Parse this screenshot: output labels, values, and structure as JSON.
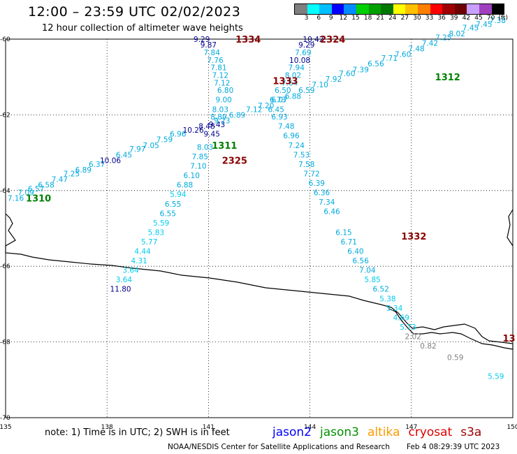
{
  "header": {
    "title": "12:00 – 23:59 UTC 02/02/2023",
    "subtitle": "12 hour collection of altimeter wave heights"
  },
  "colorbar": {
    "unit": "(ft)",
    "labels": [
      "3",
      "6",
      "9",
      "12",
      "15",
      "18",
      "21",
      "24",
      "27",
      "30",
      "33",
      "36",
      "39",
      "42",
      "45",
      "70"
    ],
    "colors": [
      "#7f7f7f",
      "#00ffff",
      "#00bfff",
      "#0000ff",
      "#008cff",
      "#00d000",
      "#00a000",
      "#007800",
      "#ffff00",
      "#ffc000",
      "#ff8000",
      "#ff0000",
      "#a00000",
      "#6e0000",
      "#c8a0ff",
      "#a040c0",
      "#000000"
    ]
  },
  "footer": {
    "note": "note: 1) Time is in UTC; 2) SWH is in feet",
    "credit": "NOAA/NESDIS Center for Satellite Applications and Research",
    "timestamp": "Feb  4 08:29:39 UTC 2023"
  },
  "legend": [
    {
      "name": "jason2",
      "color": "#0000ff"
    },
    {
      "name": "jason3",
      "color": "#009000"
    },
    {
      "name": "altika",
      "color": "#ff9900"
    },
    {
      "name": "cryosat",
      "color": "#dd0000"
    },
    {
      "name": "s3a",
      "color": "#990000"
    }
  ],
  "chart_data": {
    "type": "scatter",
    "title": "12:00 – 23:59 UTC 02/02/2023",
    "xlabel": "",
    "ylabel": "",
    "xlim": [
      135,
      150
    ],
    "ylim": [
      -70,
      -60
    ],
    "x_ticks": [
      "135",
      "138",
      "141",
      "144",
      "147",
      "150"
    ],
    "y_ticks": [
      "-60",
      "-62",
      "-64",
      "-66",
      "-68",
      "-70"
    ],
    "grid": true,
    "pass_labels": [
      {
        "text": "1334",
        "lon": 141.8,
        "lat": -60.0,
        "color": "#880000"
      },
      {
        "text": "2324",
        "lon": 144.3,
        "lat": -60.0,
        "color": "#880000"
      },
      {
        "text": "1333",
        "lon": 142.9,
        "lat": -61.1,
        "color": "#880000"
      },
      {
        "text": "1312",
        "lon": 147.7,
        "lat": -61.0,
        "color": "#008000"
      },
      {
        "text": "1311",
        "lon": 141.1,
        "lat": -62.8,
        "color": "#008000"
      },
      {
        "text": "2325",
        "lon": 141.4,
        "lat": -63.2,
        "color": "#880000"
      },
      {
        "text": "1310",
        "lon": 135.6,
        "lat": -64.2,
        "color": "#008000"
      },
      {
        "text": "1332",
        "lon": 146.7,
        "lat": -65.2,
        "color": "#880000"
      },
      {
        "text": "13",
        "lon": 149.7,
        "lat": -67.9,
        "color": "#880000"
      }
    ],
    "points": [
      {
        "lon": 140.8,
        "lat": -60.0,
        "v": "9.29",
        "c": "#00008b"
      },
      {
        "lon": 141.0,
        "lat": -60.15,
        "v": "9.87",
        "c": "#00008b"
      },
      {
        "lon": 141.1,
        "lat": -60.35,
        "v": "7.84",
        "c": "#00aadd"
      },
      {
        "lon": 141.2,
        "lat": -60.55,
        "v": "7.76",
        "c": "#00aadd"
      },
      {
        "lon": 141.3,
        "lat": -60.75,
        "v": "7.81",
        "c": "#00aadd"
      },
      {
        "lon": 141.35,
        "lat": -60.95,
        "v": "7.12",
        "c": "#00aadd"
      },
      {
        "lon": 141.4,
        "lat": -61.15,
        "v": "7.12",
        "c": "#00aadd"
      },
      {
        "lon": 141.5,
        "lat": -61.35,
        "v": "6.80",
        "c": "#00aadd"
      },
      {
        "lon": 141.45,
        "lat": -61.6,
        "v": "9.00",
        "c": "#00aadd"
      },
      {
        "lon": 141.35,
        "lat": -61.85,
        "v": "8.03",
        "c": "#00aadd"
      },
      {
        "lon": 141.3,
        "lat": -62.05,
        "v": "8.89",
        "c": "#00aadd"
      },
      {
        "lon": 141.25,
        "lat": -62.25,
        "v": "9.43",
        "c": "#00008b"
      },
      {
        "lon": 141.1,
        "lat": -62.5,
        "v": "9.45",
        "c": "#00008b"
      },
      {
        "lon": 140.9,
        "lat": -62.85,
        "v": "8.03",
        "c": "#00aadd"
      },
      {
        "lon": 140.75,
        "lat": -63.1,
        "v": "7.85",
        "c": "#00aadd"
      },
      {
        "lon": 140.7,
        "lat": -63.35,
        "v": "7.10",
        "c": "#00aadd"
      },
      {
        "lon": 140.5,
        "lat": -63.6,
        "v": "6.10",
        "c": "#00aadd"
      },
      {
        "lon": 140.3,
        "lat": -63.85,
        "v": "6.88",
        "c": "#00aadd"
      },
      {
        "lon": 140.1,
        "lat": -64.1,
        "v": "5.94",
        "c": "#00ccee"
      },
      {
        "lon": 139.95,
        "lat": -64.35,
        "v": "6.55",
        "c": "#00aadd"
      },
      {
        "lon": 139.8,
        "lat": -64.6,
        "v": "6.55",
        "c": "#00aadd"
      },
      {
        "lon": 139.6,
        "lat": -64.85,
        "v": "5.59",
        "c": "#00ccee"
      },
      {
        "lon": 139.45,
        "lat": -65.1,
        "v": "5.83",
        "c": "#00ccee"
      },
      {
        "lon": 139.25,
        "lat": -65.35,
        "v": "5.77",
        "c": "#00ccee"
      },
      {
        "lon": 139.05,
        "lat": -65.6,
        "v": "4.44",
        "c": "#00ccee"
      },
      {
        "lon": 138.95,
        "lat": -65.85,
        "v": "4.31",
        "c": "#00ccee"
      },
      {
        "lon": 138.7,
        "lat": -66.1,
        "v": "3.64",
        "c": "#00ccee"
      },
      {
        "lon": 138.5,
        "lat": -66.35,
        "v": "3.64",
        "c": "#00ccee"
      },
      {
        "lon": 138.4,
        "lat": -66.6,
        "v": "11.80",
        "c": "#00008b"
      },
      {
        "lon": 144.1,
        "lat": -60.0,
        "v": "10.42",
        "c": "#00008b"
      },
      {
        "lon": 143.9,
        "lat": -60.15,
        "v": "9.29",
        "c": "#00008b"
      },
      {
        "lon": 143.8,
        "lat": -60.35,
        "v": "7.69",
        "c": "#00aadd"
      },
      {
        "lon": 143.7,
        "lat": -60.55,
        "v": "10.08",
        "c": "#00008b"
      },
      {
        "lon": 143.6,
        "lat": -60.75,
        "v": "7.94",
        "c": "#00aadd"
      },
      {
        "lon": 143.5,
        "lat": -60.95,
        "v": "8.02",
        "c": "#00aadd"
      },
      {
        "lon": 143.4,
        "lat": -61.15,
        "v": "7.64",
        "c": "#00aadd"
      },
      {
        "lon": 143.2,
        "lat": -61.35,
        "v": "6.50",
        "c": "#00aadd"
      },
      {
        "lon": 143.05,
        "lat": -61.6,
        "v": "6.73",
        "c": "#00aadd"
      },
      {
        "lon": 143.0,
        "lat": -61.85,
        "v": "6.45",
        "c": "#00aadd"
      },
      {
        "lon": 143.1,
        "lat": -62.05,
        "v": "6.93",
        "c": "#00aadd"
      },
      {
        "lon": 143.3,
        "lat": -62.3,
        "v": "7.48",
        "c": "#00aadd"
      },
      {
        "lon": 143.45,
        "lat": -62.55,
        "v": "6.96",
        "c": "#00aadd"
      },
      {
        "lon": 143.6,
        "lat": -62.8,
        "v": "7.24",
        "c": "#00aadd"
      },
      {
        "lon": 143.75,
        "lat": -63.05,
        "v": "7.53",
        "c": "#00aadd"
      },
      {
        "lon": 143.9,
        "lat": -63.3,
        "v": "7.58",
        "c": "#00aadd"
      },
      {
        "lon": 144.05,
        "lat": -63.55,
        "v": "7.72",
        "c": "#00aadd"
      },
      {
        "lon": 144.2,
        "lat": -63.8,
        "v": "6.39",
        "c": "#00aadd"
      },
      {
        "lon": 144.35,
        "lat": -64.05,
        "v": "6.36",
        "c": "#00aadd"
      },
      {
        "lon": 144.5,
        "lat": -64.3,
        "v": "7.34",
        "c": "#00aadd"
      },
      {
        "lon": 144.65,
        "lat": -64.55,
        "v": "6.46",
        "c": "#00aadd"
      },
      {
        "lon": 145.0,
        "lat": -65.1,
        "v": "6.15",
        "c": "#00aadd"
      },
      {
        "lon": 145.15,
        "lat": -65.35,
        "v": "6.71",
        "c": "#00aadd"
      },
      {
        "lon": 145.35,
        "lat": -65.6,
        "v": "6.40",
        "c": "#00aadd"
      },
      {
        "lon": 145.5,
        "lat": -65.85,
        "v": "6.56",
        "c": "#00aadd"
      },
      {
        "lon": 145.7,
        "lat": -66.1,
        "v": "7.04",
        "c": "#00aadd"
      },
      {
        "lon": 145.85,
        "lat": -66.35,
        "v": "5.85",
        "c": "#00ccee"
      },
      {
        "lon": 146.1,
        "lat": -66.6,
        "v": "6.52",
        "c": "#00aadd"
      },
      {
        "lon": 146.3,
        "lat": -66.85,
        "v": "5.38",
        "c": "#00ccee"
      },
      {
        "lon": 146.5,
        "lat": -67.1,
        "v": "5.34",
        "c": "#00ccee"
      },
      {
        "lon": 146.7,
        "lat": -67.35,
        "v": "4.69",
        "c": "#00ccee"
      },
      {
        "lon": 146.9,
        "lat": -67.6,
        "v": "5.73",
        "c": "#00ccee"
      },
      {
        "lon": 147.05,
        "lat": -67.85,
        "v": "2.02",
        "c": "#808080"
      },
      {
        "lon": 147.5,
        "lat": -68.1,
        "v": "0.82",
        "c": "#808080"
      },
      {
        "lon": 148.3,
        "lat": -68.4,
        "v": "0.59",
        "c": "#808080"
      },
      {
        "lon": 149.5,
        "lat": -68.9,
        "v": "5.59",
        "c": "#00ccee"
      },
      {
        "lon": 135.3,
        "lat": -64.2,
        "v": "7.16",
        "c": "#00aadd"
      },
      {
        "lon": 135.6,
        "lat": -64.05,
        "v": "7.09",
        "c": "#00aadd"
      },
      {
        "lon": 135.9,
        "lat": -63.95,
        "v": "6.57",
        "c": "#00aadd"
      },
      {
        "lon": 136.2,
        "lat": -63.85,
        "v": "6.58",
        "c": "#00aadd"
      },
      {
        "lon": 136.6,
        "lat": -63.7,
        "v": "7.47",
        "c": "#00aadd"
      },
      {
        "lon": 136.95,
        "lat": -63.55,
        "v": "7.25",
        "c": "#00aadd"
      },
      {
        "lon": 137.3,
        "lat": -63.45,
        "v": "6.89",
        "c": "#00aadd"
      },
      {
        "lon": 137.7,
        "lat": -63.3,
        "v": "6.37",
        "c": "#00aadd"
      },
      {
        "lon": 138.1,
        "lat": -63.2,
        "v": "10.06",
        "c": "#00008b"
      },
      {
        "lon": 138.5,
        "lat": -63.05,
        "v": "6.45",
        "c": "#00aadd"
      },
      {
        "lon": 138.9,
        "lat": -62.9,
        "v": "7.97",
        "c": "#00aadd"
      },
      {
        "lon": 139.3,
        "lat": -62.8,
        "v": "7.05",
        "c": "#00aadd"
      },
      {
        "lon": 139.7,
        "lat": -62.65,
        "v": "7.59",
        "c": "#00aadd"
      },
      {
        "lon": 140.1,
        "lat": -62.5,
        "v": "6.96",
        "c": "#00aadd"
      },
      {
        "lon": 140.55,
        "lat": -62.4,
        "v": "10.26",
        "c": "#00008b"
      },
      {
        "lon": 140.95,
        "lat": -62.3,
        "v": "8.48",
        "c": "#00008b"
      },
      {
        "lon": 141.4,
        "lat": -62.15,
        "v": "9.23",
        "c": "#00aadd"
      },
      {
        "lon": 141.85,
        "lat": -62.0,
        "v": "6.89",
        "c": "#00aadd"
      },
      {
        "lon": 142.35,
        "lat": -61.85,
        "v": "7.12",
        "c": "#00aadd"
      },
      {
        "lon": 142.7,
        "lat": -61.75,
        "v": "7.20",
        "c": "#00aadd"
      },
      {
        "lon": 143.1,
        "lat": -61.6,
        "v": "6.07",
        "c": "#00aadd"
      },
      {
        "lon": 143.5,
        "lat": -61.5,
        "v": "6.88",
        "c": "#00aadd"
      },
      {
        "lon": 143.9,
        "lat": -61.35,
        "v": "6.59",
        "c": "#00aadd"
      },
      {
        "lon": 144.3,
        "lat": -61.2,
        "v": "7.10",
        "c": "#00aadd"
      },
      {
        "lon": 144.7,
        "lat": -61.05,
        "v": "7.92",
        "c": "#00aadd"
      },
      {
        "lon": 145.1,
        "lat": -60.9,
        "v": "7.60",
        "c": "#00aadd"
      },
      {
        "lon": 145.5,
        "lat": -60.8,
        "v": "7.39",
        "c": "#00aadd"
      },
      {
        "lon": 145.95,
        "lat": -60.65,
        "v": "6.56",
        "c": "#00aadd"
      },
      {
        "lon": 146.35,
        "lat": -60.5,
        "v": "7.71",
        "c": "#00aadd"
      },
      {
        "lon": 146.75,
        "lat": -60.4,
        "v": "7.60",
        "c": "#00aadd"
      },
      {
        "lon": 147.15,
        "lat": -60.25,
        "v": "7.48",
        "c": "#00aadd"
      },
      {
        "lon": 147.55,
        "lat": -60.1,
        "v": "7.42",
        "c": "#00aadd"
      },
      {
        "lon": 147.95,
        "lat": -59.95,
        "v": "7.25",
        "c": "#00aadd"
      },
      {
        "lon": 148.35,
        "lat": -59.85,
        "v": "8.02",
        "c": "#00aadd"
      },
      {
        "lon": 148.75,
        "lat": -59.7,
        "v": "7.45",
        "c": "#00aadd"
      },
      {
        "lon": 149.15,
        "lat": -59.6,
        "v": "7.45",
        "c": "#00aadd"
      },
      {
        "lon": 149.55,
        "lat": -59.5,
        "v": "7.38",
        "c": "#00aadd"
      }
    ]
  }
}
